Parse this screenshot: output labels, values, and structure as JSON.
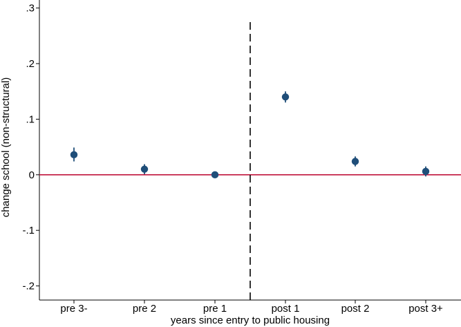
{
  "chart_data": {
    "type": "scatter",
    "title": "",
    "xlabel": "years since entry to public housing",
    "ylabel": "change school (non-structural)",
    "categories": [
      "pre 3-",
      "pre 2",
      "pre 1",
      "post 1",
      "post 2",
      "post 3+"
    ],
    "series": [
      {
        "values": [
          0.036,
          0.01,
          0.0,
          0.14,
          0.024,
          0.006
        ],
        "ci_low": [
          0.024,
          0.001,
          -0.001,
          0.13,
          0.015,
          -0.003
        ],
        "ci_high": [
          0.049,
          0.019,
          0.001,
          0.15,
          0.033,
          0.015
        ],
        "color": "#1f4e79"
      }
    ],
    "ylim": [
      -0.2,
      0.3
    ],
    "yticks": [
      {
        "value": -0.2,
        "label": "-.2"
      },
      {
        "value": -0.1,
        "label": "-.1"
      },
      {
        "value": 0,
        "label": "0"
      },
      {
        "value": 0.1,
        "label": ".1"
      },
      {
        "value": 0.2,
        "label": ".2"
      },
      {
        "value": 0.3,
        "label": ".3"
      }
    ],
    "reference_lines": {
      "horizontal_zero_color": "#c0143c",
      "vertical_dashed_between": [
        "pre 1",
        "post 1"
      ]
    },
    "grid": false,
    "legend": "none"
  }
}
